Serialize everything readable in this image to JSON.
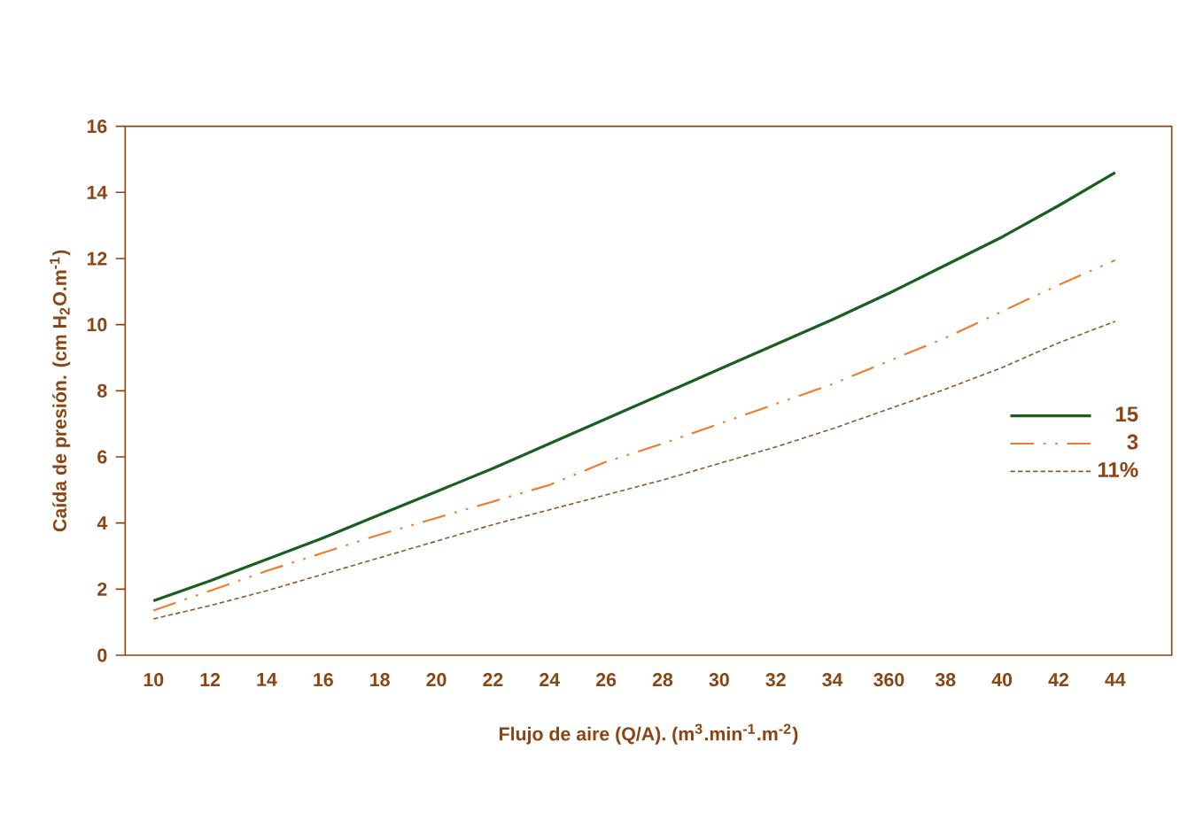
{
  "chart_data": {
    "type": "line",
    "xlabel": "Flujo de aire (Q/A). (m$^{3}$.min$^{-1}$.m$^{-2}$)",
    "ylabel": "Caída de presión. (cm H$_{2}$O.m$^{-1}$)",
    "categories": [
      "10",
      "12",
      "14",
      "16",
      "18",
      "20",
      "22",
      "24",
      "26",
      "28",
      "30",
      "32",
      "34",
      "360",
      "38",
      "40",
      "42",
      "44"
    ],
    "ylim": [
      0,
      16
    ],
    "yticks": [
      0,
      2,
      4,
      6,
      8,
      10,
      12,
      14,
      16
    ],
    "grid": false,
    "legend": "right",
    "marker": "none",
    "series": [
      {
        "name": "15",
        "color": "#1a5e20",
        "line_style": "solid",
        "values": [
          1.65,
          2.25,
          2.9,
          3.55,
          4.25,
          4.95,
          5.65,
          6.4,
          7.15,
          7.9,
          8.65,
          9.4,
          10.15,
          10.95,
          11.8,
          12.65,
          13.6,
          14.6
        ]
      },
      {
        "name": "3",
        "color": "#f07a28",
        "line_style": "dashdot",
        "values": [
          1.35,
          1.95,
          2.55,
          3.1,
          3.65,
          4.15,
          4.65,
          5.15,
          5.85,
          6.4,
          7.0,
          7.6,
          8.2,
          8.9,
          9.6,
          10.4,
          11.2,
          11.95
        ]
      },
      {
        "name": "11%",
        "color": "#8b5a2b",
        "line_style": "dashed",
        "values": [
          1.1,
          1.5,
          1.95,
          2.45,
          2.95,
          3.45,
          3.95,
          4.4,
          4.85,
          5.3,
          5.8,
          6.3,
          6.85,
          7.45,
          8.05,
          8.7,
          9.45,
          10.1
        ]
      }
    ]
  }
}
